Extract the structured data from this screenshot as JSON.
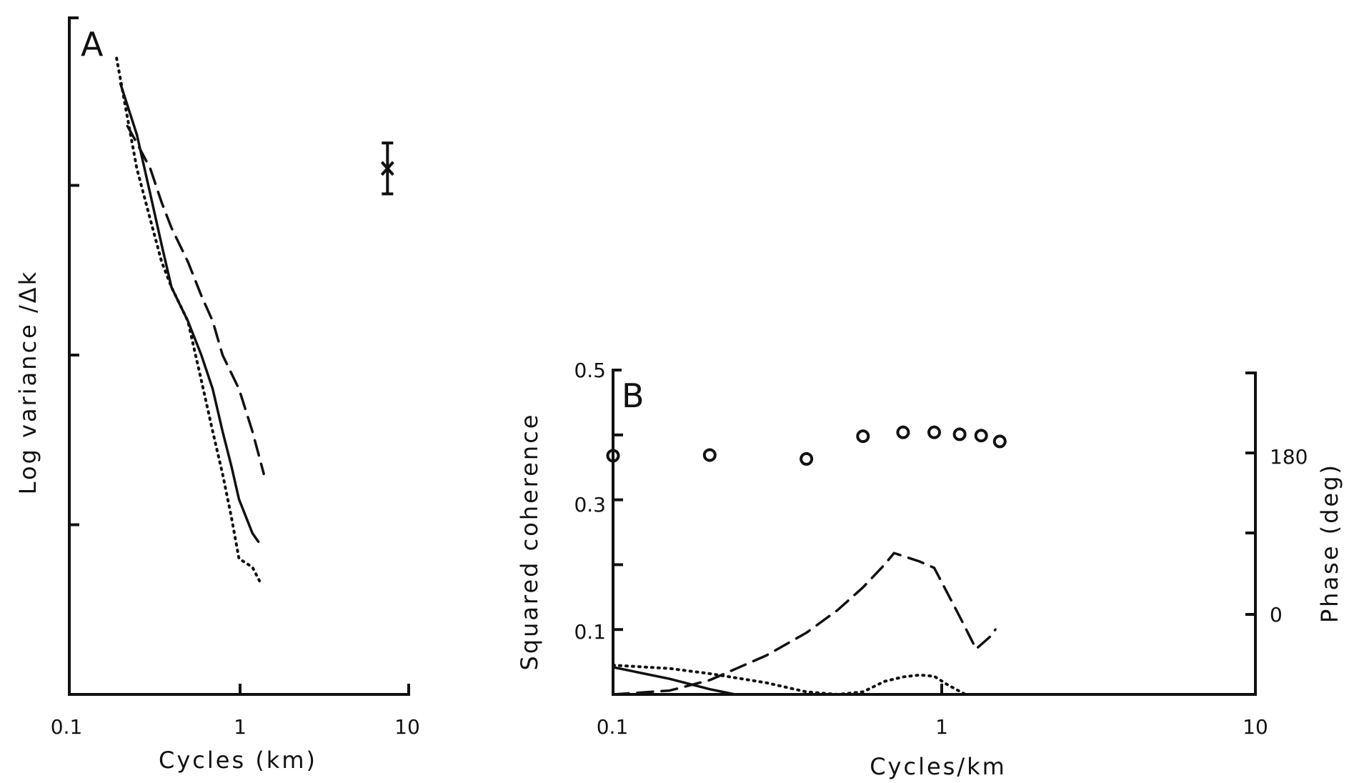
{
  "chart_data": [
    {
      "type": "line",
      "panel_label": "A",
      "xlabel": "Cycles (km)",
      "ylabel": "Log variance /Δk",
      "xscale": "log",
      "xlim": [
        0.1,
        10
      ],
      "xticks": [
        "0.1",
        "1",
        "10"
      ],
      "ylim": [
        0,
        4
      ],
      "yticks_unlabeled": [
        1,
        2,
        3
      ],
      "series": [
        {
          "style": "solid",
          "x": [
            0.2,
            0.25,
            0.3,
            0.35,
            0.4,
            0.5,
            0.6,
            0.7,
            0.8,
            0.9,
            1.0,
            1.2,
            1.3
          ],
          "y": [
            3.6,
            3.3,
            2.95,
            2.65,
            2.4,
            2.2,
            2.0,
            1.8,
            1.55,
            1.35,
            1.15,
            0.95,
            0.9
          ]
        },
        {
          "style": "dashed",
          "x": [
            0.22,
            0.25,
            0.3,
            0.35,
            0.4,
            0.5,
            0.6,
            0.7,
            0.8,
            1.0,
            1.2,
            1.4
          ],
          "y": [
            3.35,
            3.25,
            3.1,
            2.9,
            2.75,
            2.55,
            2.35,
            2.2,
            2.0,
            1.8,
            1.55,
            1.3
          ]
        },
        {
          "style": "dotted",
          "x": [
            0.19,
            0.22,
            0.25,
            0.3,
            0.35,
            0.4,
            0.5,
            0.6,
            0.7,
            0.8,
            0.9,
            1.0,
            1.2,
            1.35
          ],
          "y": [
            3.75,
            3.4,
            3.1,
            2.8,
            2.55,
            2.4,
            2.2,
            1.85,
            1.55,
            1.3,
            1.05,
            0.8,
            0.75,
            0.65
          ]
        }
      ],
      "error_bar": {
        "x": 7.5,
        "y": 3.1,
        "low": 2.95,
        "high": 3.25
      }
    },
    {
      "type": "line",
      "panel_label": "B",
      "xlabel": "Cycles/km",
      "ylabel": "Squared coherence",
      "ylabel_right": "Phase (deg)",
      "xscale": "log",
      "xlim": [
        0.1,
        10
      ],
      "xticks": [
        "0.1",
        "1",
        "10"
      ],
      "ylim": [
        0,
        0.5
      ],
      "yticks": [
        "0.1",
        "0.3",
        "0.5"
      ],
      "right_ticks": [
        "0",
        "180"
      ],
      "series": [
        {
          "style": "solid",
          "x": [
            0.1,
            0.15,
            0.2,
            0.24
          ],
          "y": [
            0.042,
            0.024,
            0.008,
            0.0
          ]
        },
        {
          "style": "dashed",
          "x": [
            0.1,
            0.15,
            0.2,
            0.3,
            0.4,
            0.5,
            0.6,
            0.7,
            0.75,
            0.9,
            1.0,
            1.2,
            1.35,
            1.5,
            1.55
          ],
          "y": [
            0.0,
            0.006,
            0.022,
            0.06,
            0.095,
            0.13,
            0.165,
            0.2,
            0.218,
            0.205,
            0.195,
            0.12,
            0.07,
            0.09,
            0.1
          ]
        },
        {
          "style": "dotted",
          "x": [
            0.1,
            0.15,
            0.2,
            0.3,
            0.4,
            0.5,
            0.6,
            0.7,
            0.8,
            0.9,
            1.0,
            1.1,
            1.25
          ],
          "y": [
            0.045,
            0.04,
            0.032,
            0.018,
            0.004,
            0.0,
            0.004,
            0.02,
            0.027,
            0.03,
            0.028,
            0.015,
            0.0
          ]
        }
      ],
      "phase_points": {
        "x": [
          0.1,
          0.2,
          0.4,
          0.6,
          0.8,
          1.0,
          1.2,
          1.4,
          1.6
        ],
        "y": [
          0.368,
          0.369,
          0.363,
          0.398,
          0.404,
          0.404,
          0.401,
          0.399,
          0.39
        ]
      }
    }
  ]
}
